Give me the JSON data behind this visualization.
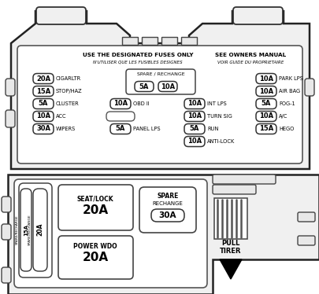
{
  "title_line1": "USE THE DESIGNATED FUSES ONLY",
  "title_line2": "N'UTILISER QUE LES FUSIBLES DESIGNES",
  "title_line3": "SEE OWNERS MANUAL",
  "title_line4": "VOIR GUIDE DU PROPRIETAIRE",
  "fuses_left": [
    {
      "amp": "20A",
      "label": "CIGARLTR"
    },
    {
      "amp": "15A",
      "label": "STOP/HAZ"
    },
    {
      "amp": "5A",
      "label": "CLUSTER"
    },
    {
      "amp": "10A",
      "label": "ACC"
    },
    {
      "amp": "30A",
      "label": "WIPERS"
    }
  ],
  "fuses_mid_col1": [
    {
      "amp": "10A",
      "label": "OBD II"
    },
    {
      "amp": "",
      "label": ""
    },
    {
      "amp": "5A",
      "label": "PANEL LPS"
    }
  ],
  "fuses_mid_col2": [
    {
      "amp": "10A",
      "label": "INT LPS"
    },
    {
      "amp": "10A",
      "label": "TURN SIG"
    },
    {
      "amp": "5A",
      "label": "RUN"
    },
    {
      "amp": "10A",
      "label": "ANTI-LOCK"
    }
  ],
  "fuses_right": [
    {
      "amp": "10A",
      "label": "PARK LPS"
    },
    {
      "amp": "10A",
      "label": "AIR BAG"
    },
    {
      "amp": "5A",
      "label": "FOG-1"
    },
    {
      "amp": "10A",
      "label": "A/C"
    },
    {
      "amp": "15A",
      "label": "HEGO"
    }
  ],
  "spare_top_label": "SPARE / RECHANGE",
  "spare_top_amp1": "5A",
  "spare_top_amp2": "10A",
  "lower_spare1_amp": "20A",
  "lower_spare1_label": "SPARE/RECHANGE",
  "lower_spare2_amp": "15A",
  "lower_spare2_label": "SPARE/RECHARGE",
  "seat_lock_title": "SEAT/LOCK",
  "seat_lock_amp": "20A",
  "power_wdo_title": "POWER WDO",
  "power_wdo_amp": "20A",
  "lower_spare_title1": "SPARE",
  "lower_spare_title2": "RECHANGE",
  "lower_spare_amp": "30A",
  "pull_line1": "PULL",
  "pull_line2": "TIRER"
}
